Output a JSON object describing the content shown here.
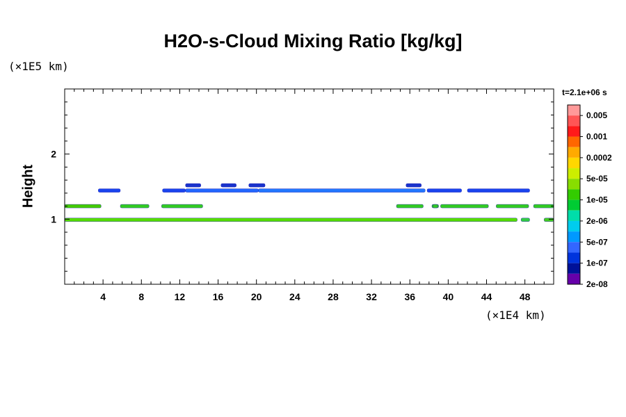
{
  "chart_data": {
    "type": "heatmap",
    "title": "H2O-s-Cloud Mixing Ratio [kg/kg]",
    "xlabel": "",
    "ylabel": "Height",
    "x_unit": "(×1E4 km)",
    "y_unit": "(×1E5 km)",
    "time_label": "t=2.1e+06 s",
    "xlim": [
      0,
      51
    ],
    "ylim": [
      0,
      3
    ],
    "xticks": [
      4,
      8,
      12,
      16,
      20,
      24,
      28,
      32,
      36,
      40,
      44,
      48
    ],
    "xtick_labels": [
      "4",
      "8",
      "12",
      "16",
      "20",
      "24",
      "28",
      "32",
      "36",
      "40",
      "44",
      "48"
    ],
    "yticks": [
      1,
      2
    ],
    "ytick_labels": [
      "1",
      "2"
    ],
    "colorbar": {
      "labels": [
        "0.005",
        "0.001",
        "0.0002",
        "5e-05",
        "1e-05",
        "2e-06",
        "5e-07",
        "1e-07",
        "2e-08"
      ],
      "colors": [
        "#ff9999",
        "#ff5555",
        "#ff1a1a",
        "#ff6600",
        "#ffaa00",
        "#ffd700",
        "#ccee00",
        "#88dd00",
        "#33cc00",
        "#00cc33",
        "#00ddaa",
        "#00ccee",
        "#0099ff",
        "#3366ff",
        "#0033dd",
        "#001199",
        "#6600aa"
      ]
    },
    "layers": [
      {
        "name": "upper band",
        "y": 1.44,
        "segments": [
          [
            3.5,
            5.8,
            "#1a44ee"
          ],
          [
            10.2,
            12.6,
            "#1a44ee"
          ],
          [
            12.6,
            20.2,
            "#2266ff"
          ],
          [
            20.2,
            37.6,
            "#2277ff"
          ],
          [
            37.8,
            41.4,
            "#1a44ee"
          ],
          [
            42.0,
            48.5,
            "#1a44ee"
          ]
        ]
      },
      {
        "name": "upper cloud tops",
        "y": 1.52,
        "segments": [
          [
            12.6,
            14.2,
            "#1a33cc"
          ],
          [
            16.3,
            17.9,
            "#1a33cc"
          ],
          [
            19.2,
            20.9,
            "#1a33cc"
          ],
          [
            35.6,
            37.2,
            "#1a33cc"
          ]
        ]
      },
      {
        "name": "middle band",
        "y": 1.2,
        "segments": [
          [
            0,
            3.8,
            "#44cc00"
          ],
          [
            5.8,
            8.8,
            "#33cc22"
          ],
          [
            10.1,
            14.4,
            "#33cc22"
          ],
          [
            34.6,
            37.4,
            "#33cc22"
          ],
          [
            38.3,
            39.0,
            "#33cc22"
          ],
          [
            38.4,
            38.9,
            "#33cc22"
          ],
          [
            39.2,
            44.2,
            "#33cc22"
          ],
          [
            45.0,
            48.4,
            "#33cc22"
          ],
          [
            48.9,
            51,
            "#33cc22"
          ]
        ]
      },
      {
        "name": "lower band",
        "y": 0.99,
        "segments": [
          [
            0,
            47.2,
            "#55dd00"
          ],
          [
            47.6,
            48.5,
            "#33cc44"
          ],
          [
            50.0,
            51,
            "#44cc22"
          ]
        ]
      }
    ]
  }
}
